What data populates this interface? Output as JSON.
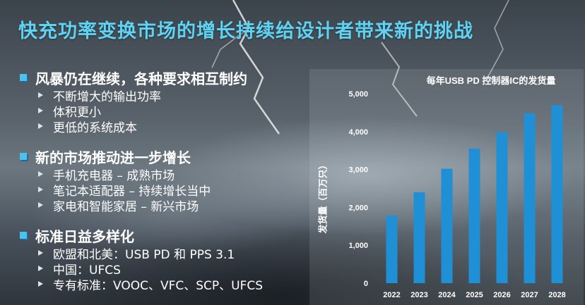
{
  "slide": {
    "title": "快充功率变换市场的增长持续给设计者带来新的挑战"
  },
  "bullets": [
    {
      "heading": "风暴仍在继续，各种要求相互制约",
      "items": [
        "不断增大的输出功率",
        "体积更小",
        "更低的系统成本"
      ]
    },
    {
      "heading": "新的市场推动进一步增长",
      "items": [
        "手机充电器 – 成熟市场",
        "笔记本适配器 – 持续增长当中",
        "家电和智能家居 – 新兴市场"
      ]
    },
    {
      "heading": "标准日益多样化",
      "items": [
        "欧盟和北美：USB PD 和 PPS 3.1",
        "中国：UFCS",
        "专有标准：VOOC、VFC、SCP、UFCS"
      ]
    }
  ],
  "colors": {
    "title": "#5fd3f3",
    "bar": "#1f8fd6",
    "bullet": "#4cc0ee"
  },
  "chart_data": {
    "type": "bar",
    "title": "每年USB PD 控制器IC的发货量",
    "ylabel": "发货量（百万只）",
    "categories": [
      "2022",
      "2023",
      "2024",
      "2025",
      "2026",
      "2027",
      "2028"
    ],
    "values": [
      1780,
      2400,
      3020,
      3550,
      3980,
      4480,
      4700
    ],
    "ylim": [
      0,
      5000
    ],
    "yticks": [
      "0",
      "1,000",
      "2,000",
      "3,000",
      "4,000",
      "5,000"
    ],
    "ytick_values": [
      0,
      1000,
      2000,
      3000,
      4000,
      5000
    ],
    "grid": false,
    "legend": "none"
  }
}
